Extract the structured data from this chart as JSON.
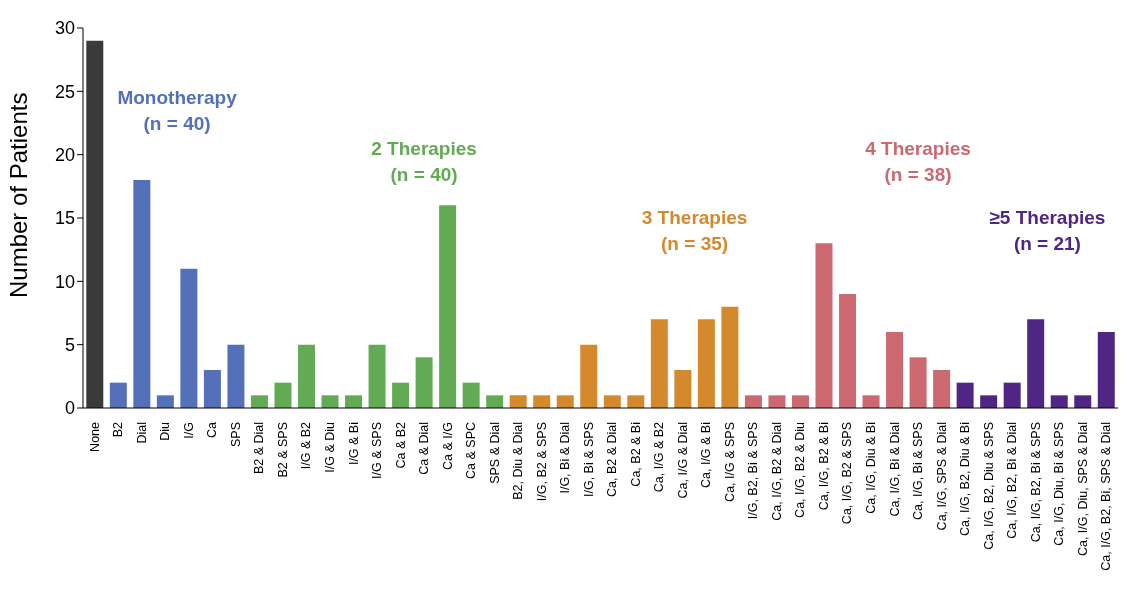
{
  "chart_data": {
    "type": "bar",
    "ylabel": "Number of Patients",
    "categories": [
      "None",
      "B2",
      "Dial",
      "Diu",
      "I/G",
      "Ca",
      "SPS",
      "B2 & Dial",
      "B2 & SPS",
      "I/G & B2",
      "I/G & Diu",
      "I/G & Bi",
      "I/G & SPS",
      "Ca & B2",
      "Ca & Dial",
      "Ca & I/G",
      "Ca & SPC",
      "SPS & Dial",
      "B2, Diu & Dial",
      "I/G, B2 & SPS",
      "I/G, Bi & Dial",
      "I/G, Bi & SPS",
      "Ca, B2 & Dial",
      "Ca, B2 & Bi",
      "Ca, I/G & B2",
      "Ca, I/G & Dial",
      "Ca, I/G & Bi",
      "Ca, I/G & SPS",
      "I/G, B2, Bi & SPS",
      "Ca, I/G, B2 & Dial",
      "Ca, I/G, B2 & Diu",
      "Ca, I/G, B2 & Bi",
      "Ca, I/G, B2 & SPS",
      "Ca, I/G, Diu & Bi",
      "Ca, I/G, Bi & Dial",
      "Ca, I/G, Bi & SPS",
      "Ca, I/G, SPS & Dial",
      "Ca, I/G, B2, Diu & Bi",
      "Ca, I/G, B2, Diu & SPS",
      "Ca, I/G, B2, Bi & Dial",
      "Ca, I/G, B2, Bi & SPS",
      "Ca, I/G, Diu, Bi & SPS",
      "Ca, I/G, Diu, SPS & Dial",
      "Ca, I/G, B2, Bi, SPS & Dial"
    ],
    "values": [
      29,
      2,
      18,
      1,
      11,
      3,
      5,
      1,
      2,
      5,
      1,
      1,
      5,
      2,
      4,
      16,
      2,
      1,
      1,
      1,
      1,
      5,
      1,
      1,
      7,
      3,
      7,
      8,
      1,
      1,
      1,
      13,
      9,
      1,
      6,
      4,
      3,
      2,
      1,
      2,
      7,
      1,
      1,
      6
    ],
    "colors": [
      "#3a3a3a",
      "#5470b8",
      "#5470b8",
      "#5470b8",
      "#5470b8",
      "#5470b8",
      "#5470b8",
      "#63aa55",
      "#63aa55",
      "#63aa55",
      "#63aa55",
      "#63aa55",
      "#63aa55",
      "#63aa55",
      "#63aa55",
      "#63aa55",
      "#63aa55",
      "#63aa55",
      "#d4892c",
      "#d4892c",
      "#d4892c",
      "#d4892c",
      "#d4892c",
      "#d4892c",
      "#d4892c",
      "#d4892c",
      "#d4892c",
      "#d4892c",
      "#cc6870",
      "#cc6870",
      "#cc6870",
      "#cc6870",
      "#cc6870",
      "#cc6870",
      "#cc6870",
      "#cc6870",
      "#cc6870",
      "#4f2683",
      "#4f2683",
      "#4f2683",
      "#4f2683",
      "#4f2683",
      "#4f2683",
      "#4f2683"
    ],
    "ylim": [
      0,
      30
    ],
    "yticks": [
      0,
      5,
      10,
      15,
      20,
      25,
      30
    ],
    "grid": false,
    "legend": false,
    "annotations": [
      "Monotherapy\n(n = 40)",
      "2 Therapies\n(n = 40)",
      "3 Therapies\n(n = 35)",
      "4 Therapies\n(n = 38)",
      "≥5 Therapies\n(n = 21)"
    ]
  }
}
